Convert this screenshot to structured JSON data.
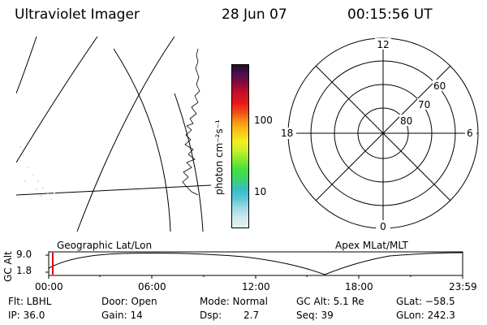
{
  "header": {
    "title": "Ultraviolet Imager",
    "date": "28 Jun 07",
    "time": "00:15:56 UT"
  },
  "colorbar": {
    "unit_label": "photon cm⁻²s⁻¹",
    "tick_100": "100",
    "tick_10": "10",
    "colors": [
      "#e4f2f4",
      "#cfe8ec",
      "#9fdce4",
      "#5cc8d8",
      "#34c0c4",
      "#40d070",
      "#3fe040",
      "#80e830",
      "#c8f028",
      "#f0f020",
      "#f8c818",
      "#f89810",
      "#f05018",
      "#e81818",
      "#c81028",
      "#900838",
      "#501050",
      "#200c30"
    ]
  },
  "polar": {
    "mlt_12": "12",
    "mlt_18": "18",
    "mlt_6": "6",
    "mlt_0": "0",
    "lat_60": "60",
    "lat_70": "70",
    "lat_80": "80"
  },
  "altitude_panel": {
    "ylabel": "GC Alt",
    "ytick_top": "9.0",
    "ytick_bottom": "1.8",
    "label_left": "Geographic Lat/Lon",
    "label_right": "Apex MLat/MLT",
    "xticks": [
      "00:00",
      "06:00",
      "12:00",
      "18:00",
      "23:59"
    ]
  },
  "footer": {
    "flt": "Flt: LBHL",
    "ip": "IP: 36.0",
    "door": "Door: Open",
    "gain": "Gain: 14",
    "mode": "Mode: Normal",
    "dsp_label": "Dsp:",
    "dsp_value": "2.7",
    "gc_alt": "GC Alt: 5.1 Re",
    "seq": "Seq: 39",
    "glat": "GLat: −58.5",
    "glon": "GLon: 242.3"
  }
}
